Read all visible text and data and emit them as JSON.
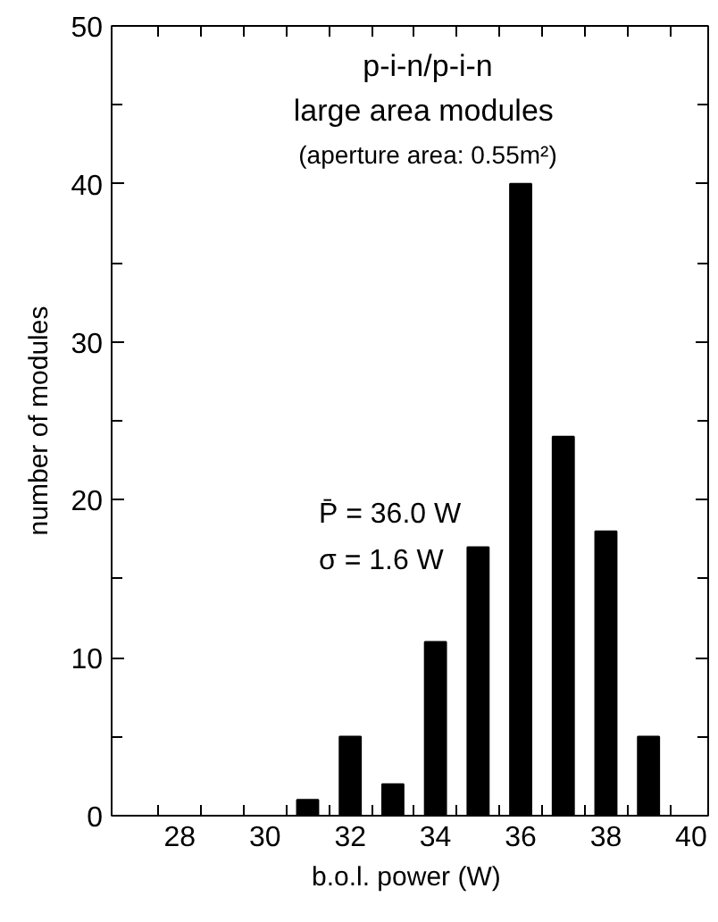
{
  "chart_data": {
    "type": "bar",
    "xlabel": "b.o.l. power  (W)",
    "ylabel": "number of modules",
    "x": [
      31,
      32,
      33,
      34,
      35,
      36,
      37,
      38,
      39
    ],
    "values": [
      1,
      5,
      2,
      11,
      17,
      40,
      24,
      18,
      5
    ],
    "color": "#000000",
    "xlim": [
      26.4,
      40.4
    ],
    "ylim": [
      0,
      50
    ],
    "xticks": [
      {
        "value": 27.5,
        "label": null
      },
      {
        "value": 28,
        "label": "28"
      },
      {
        "value": 28.5,
        "label": null
      },
      {
        "value": 29.5,
        "label": null
      },
      {
        "value": 30,
        "label": "30"
      },
      {
        "value": 30.5,
        "label": null
      },
      {
        "value": 31.5,
        "label": null
      },
      {
        "value": 32,
        "label": "32"
      },
      {
        "value": 32.5,
        "label": null
      },
      {
        "value": 33.5,
        "label": null
      },
      {
        "value": 34,
        "label": "34"
      },
      {
        "value": 34.5,
        "label": null
      },
      {
        "value": 35.5,
        "label": null
      },
      {
        "value": 36,
        "label": "36"
      },
      {
        "value": 36.5,
        "label": null
      },
      {
        "value": 37.5,
        "label": null
      },
      {
        "value": 38,
        "label": "38"
      },
      {
        "value": 38.5,
        "label": null
      },
      {
        "value": 39.5,
        "label": null
      },
      {
        "value": 40,
        "label": "40"
      }
    ],
    "yticks": [
      0,
      {
        "value": 5,
        "label": null
      },
      10,
      {
        "value": 15,
        "label": null
      },
      20,
      {
        "value": 25,
        "label": null
      },
      30,
      {
        "value": 35,
        "label": null
      },
      40,
      {
        "value": 45,
        "label": null
      },
      50
    ],
    "annotations": [
      "p-i-n/p-i-n",
      "large area  modules",
      "(aperture area: 0.55m²)",
      "P̄ = 36.0 W",
      "σ = 1.6 W"
    ],
    "grid": false
  }
}
